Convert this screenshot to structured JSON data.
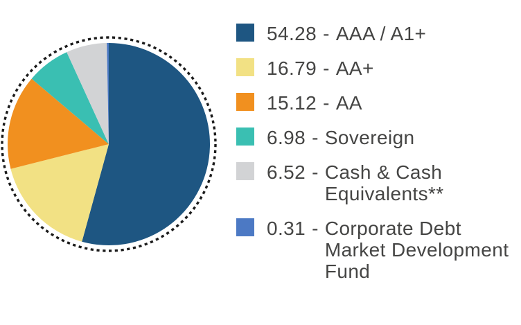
{
  "chart_data": {
    "type": "pie",
    "title": "",
    "labels": [
      "AAA / A1+",
      "AA+",
      "AA",
      "Sovereign",
      "Cash & Cash Equivalents**",
      "Corporate Debt Market Development Fund"
    ],
    "values": [
      54.28,
      16.79,
      15.12,
      6.98,
      6.52,
      0.31
    ],
    "colors": [
      "#1E5682",
      "#F2E184",
      "#F1901F",
      "#3ABFB2",
      "#D2D3D5",
      "#4C79C4"
    ],
    "start_angle_deg": 0,
    "direction": "clockwise",
    "outer_ring": {
      "style": "dotted",
      "color": "#1B1B1B"
    },
    "legend_position": "right"
  },
  "legend": {
    "separator": "-",
    "items": [
      {
        "value": "54.28",
        "label": "AAA / A1+",
        "color": "#1E5682"
      },
      {
        "value": "16.79",
        "label": "AA+",
        "color": "#F2E184"
      },
      {
        "value": "15.12",
        "label": "AA",
        "color": "#F1901F"
      },
      {
        "value": "6.98",
        "label": "Sovereign",
        "color": "#3ABFB2"
      },
      {
        "value": "6.52",
        "label": "Cash & Cash Equivalents**",
        "color": "#D2D3D5"
      },
      {
        "value": "0.31",
        "label": "Corporate Debt Market Development Fund",
        "color": "#4C79C4"
      }
    ]
  }
}
